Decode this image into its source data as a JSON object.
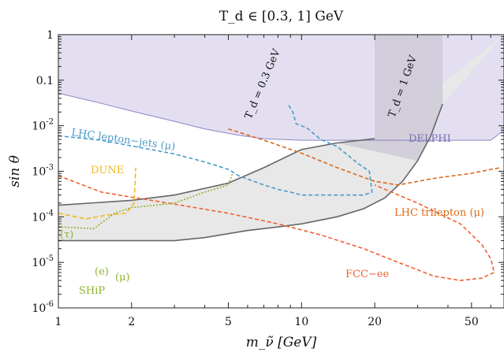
{
  "chart_data": {
    "type": "area",
    "title": "T_d ∈ [0.3, 1] GeV",
    "xlabel": "m_ν̃ [GeV]",
    "ylabel": "sin θ",
    "xscale": "log",
    "yscale": "log",
    "xlim": [
      1,
      68
    ],
    "ylim": [
      1e-06,
      1
    ],
    "xticks": [
      1,
      2,
      5,
      10,
      20,
      50
    ],
    "xtick_labels": [
      "1",
      "2",
      "5",
      "10",
      "20",
      "50"
    ],
    "yticks": [
      1e-06,
      1e-05,
      0.0001,
      0.001,
      0.01,
      0.1,
      1
    ],
    "ytick_labels": [
      "10^-6",
      "10^-5",
      "10^-4",
      "10^-3",
      "10^-2",
      "0.1",
      "1"
    ],
    "grid": false,
    "colors": {
      "delphi_fill": "#e4dff0",
      "delphi_line": "#8f84c4",
      "allowed_fill": "#e8e8e8",
      "allowed_line": "#666666",
      "td_band": "#cfcbd8",
      "lhc_lepton_jets": "#4a9cc9",
      "lhc_trilepton": "#d96a1c",
      "fcc_ee": "#f06030",
      "dune": "#f0b820",
      "ship": "#8cb42c"
    },
    "regions": [
      {
        "name": "DELPHI",
        "points": [
          [
            1,
            0.052
          ],
          [
            1.5,
            0.031
          ],
          [
            2,
            0.021
          ],
          [
            3,
            0.0125
          ],
          [
            4,
            0.0085
          ],
          [
            5.5,
            0.0062
          ],
          [
            7,
            0.0052
          ],
          [
            10,
            0.0048
          ],
          [
            15,
            0.0048
          ],
          [
            30,
            0.0048
          ],
          [
            60,
            0.0048
          ],
          [
            68,
            0.008
          ]
        ]
      },
      {
        "name": "allowed",
        "lower_edge": [
          [
            1,
            3e-05
          ],
          [
            3,
            3e-05
          ],
          [
            4,
            3.5e-05
          ],
          [
            6,
            5e-05
          ],
          [
            8,
            6e-05
          ],
          [
            10,
            7e-05
          ],
          [
            14,
            0.0001
          ],
          [
            18,
            0.00015
          ],
          [
            22,
            0.00026
          ],
          [
            26,
            0.0006
          ],
          [
            30,
            0.0017
          ],
          [
            34,
            0.006
          ],
          [
            38,
            0.03
          ]
        ],
        "upper_edge": [
          [
            1,
            0.00018
          ],
          [
            2,
            0.00023
          ],
          [
            3,
            0.0003
          ],
          [
            5,
            0.00055
          ],
          [
            7,
            0.0012
          ],
          [
            10,
            0.003
          ],
          [
            14,
            0.0042
          ],
          [
            20,
            0.0052
          ]
        ]
      }
    ],
    "series": [
      {
        "name": "T_d = 0.3 GeV",
        "points": [
          [
            1,
            3e-05
          ],
          [
            3,
            3e-05
          ],
          [
            4,
            3.5e-05
          ],
          [
            6,
            5e-05
          ],
          [
            8,
            6e-05
          ],
          [
            10,
            7e-05
          ],
          [
            14,
            0.0001
          ],
          [
            18,
            0.00015
          ],
          [
            22,
            0.00026
          ],
          [
            26,
            0.0006
          ],
          [
            30,
            0.0017
          ],
          [
            34,
            0.006
          ],
          [
            38,
            0.03
          ]
        ]
      },
      {
        "name": "T_d = 1 GeV",
        "points": [
          [
            1,
            0.00018
          ],
          [
            2,
            0.00023
          ],
          [
            3,
            0.0003
          ],
          [
            5,
            0.00055
          ],
          [
            7,
            0.0012
          ],
          [
            10,
            0.003
          ],
          [
            14,
            0.0042
          ],
          [
            20,
            0.0052
          ]
        ]
      },
      {
        "name": "LHC lepton−jets (μ)",
        "points": [
          [
            1,
            0.006
          ],
          [
            1.5,
            0.0048
          ],
          [
            2,
            0.0036
          ],
          [
            3,
            0.0024
          ],
          [
            4,
            0.0016
          ],
          [
            5,
            0.0011
          ],
          [
            5.5,
            0.0008
          ],
          [
            7,
            0.0005
          ],
          [
            8,
            0.0004
          ],
          [
            9,
            0.00035
          ],
          [
            10,
            0.0003
          ],
          [
            14,
            0.0003
          ],
          [
            18,
            0.0003
          ],
          [
            19.5,
            0.00035
          ],
          [
            19,
            0.001
          ],
          [
            17,
            0.0015
          ],
          [
            14,
            0.0035
          ],
          [
            12,
            0.005
          ],
          [
            10.5,
            0.009
          ],
          [
            9.5,
            0.011
          ],
          [
            9.2,
            0.02
          ],
          [
            8.8,
            0.03
          ]
        ]
      },
      {
        "name": "LHC trilepton (μ)",
        "points": [
          [
            5,
            0.0085
          ],
          [
            7,
            0.0048
          ],
          [
            10,
            0.0025
          ],
          [
            14,
            0.0012
          ],
          [
            20,
            0.0006
          ],
          [
            25,
            0.0005
          ],
          [
            35,
            0.0007
          ],
          [
            50,
            0.0009
          ],
          [
            60,
            0.0011
          ],
          [
            66,
            0.0012
          ]
        ]
      },
      {
        "name": "FCC−ee",
        "points": [
          [
            1,
            0.0008
          ],
          [
            1.5,
            0.00035
          ],
          [
            2,
            0.00027
          ],
          [
            3,
            0.00019
          ],
          [
            5,
            0.00012
          ],
          [
            8,
            7e-05
          ],
          [
            12,
            4e-05
          ],
          [
            18,
            2e-05
          ],
          [
            25,
            1e-05
          ],
          [
            35,
            5e-06
          ],
          [
            45,
            4e-06
          ],
          [
            55,
            4.5e-06
          ],
          [
            62,
            6e-06
          ],
          [
            60,
            1.2e-05
          ],
          [
            55,
            2.5e-05
          ],
          [
            45,
            7e-05
          ],
          [
            30,
            0.0002
          ],
          [
            20,
            0.0005
          ]
        ]
      },
      {
        "name": "DUNE",
        "points": [
          [
            1,
            0.00012
          ],
          [
            1.3,
            9e-05
          ],
          [
            1.6,
            0.00011
          ],
          [
            1.9,
            0.00012
          ],
          [
            2.05,
            0.0002
          ],
          [
            2.08,
            0.0012
          ]
        ]
      },
      {
        "name": "SHiP",
        "points": [
          [
            1,
            6e-05
          ],
          [
            1.4,
            5.5e-05
          ],
          [
            1.7,
            0.00012
          ],
          [
            2,
            0.00016
          ],
          [
            2.5,
            0.00018
          ],
          [
            3,
            0.0002
          ],
          [
            4,
            0.00035
          ],
          [
            5,
            0.0005
          ],
          [
            5.2,
            0.0009
          ]
        ]
      }
    ],
    "labels": [
      {
        "id": "delphi",
        "text": "DELPHI"
      },
      {
        "id": "td03",
        "text": "T_d = 0.3 GeV"
      },
      {
        "id": "td1",
        "text": "T_d = 1 GeV"
      },
      {
        "id": "lhcjets",
        "text": "LHC lepton−jets (μ)"
      },
      {
        "id": "lhctri",
        "text": "LHC trilepton (μ)"
      },
      {
        "id": "fcc",
        "text": "FCC−ee"
      },
      {
        "id": "dune",
        "text": "DUNE"
      },
      {
        "id": "ship",
        "text": "SHiP"
      },
      {
        "id": "tau",
        "text": "(τ)"
      },
      {
        "id": "e",
        "text": "(e)"
      },
      {
        "id": "mu",
        "text": "(μ)"
      }
    ]
  }
}
